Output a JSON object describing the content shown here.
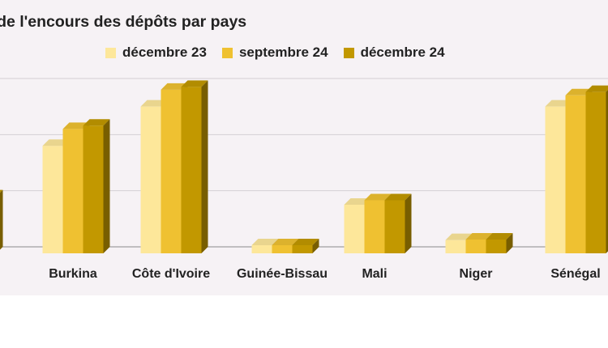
{
  "chart_data": {
    "type": "bar",
    "title": "Évolution de l'encours des dépôts par pays",
    "title_visible": "ution de l'encours des dépôts par pays",
    "categories": [
      "",
      "Burkina",
      "Côte d'Ivoire",
      "Guinée-Bissau",
      "Mali",
      "Niger",
      "Sénégal"
    ],
    "series": [
      {
        "name": "décembre 23",
        "color": "#fde79a",
        "values": [
          null,
          1.8,
          2.5,
          0.02,
          0.75,
          0.12,
          2.5
        ]
      },
      {
        "name": "septembre 24",
        "color": "#efc131",
        "values": [
          null,
          2.1,
          2.8,
          0.02,
          0.83,
          0.13,
          2.7
        ]
      },
      {
        "name": "décembre 24",
        "color": "#c29800",
        "values": [
          0.9,
          2.16,
          2.85,
          0.02,
          0.83,
          0.13,
          2.76
        ]
      }
    ],
    "ylim": [
      0,
      3
    ],
    "grid": true,
    "legend_position": "top"
  }
}
